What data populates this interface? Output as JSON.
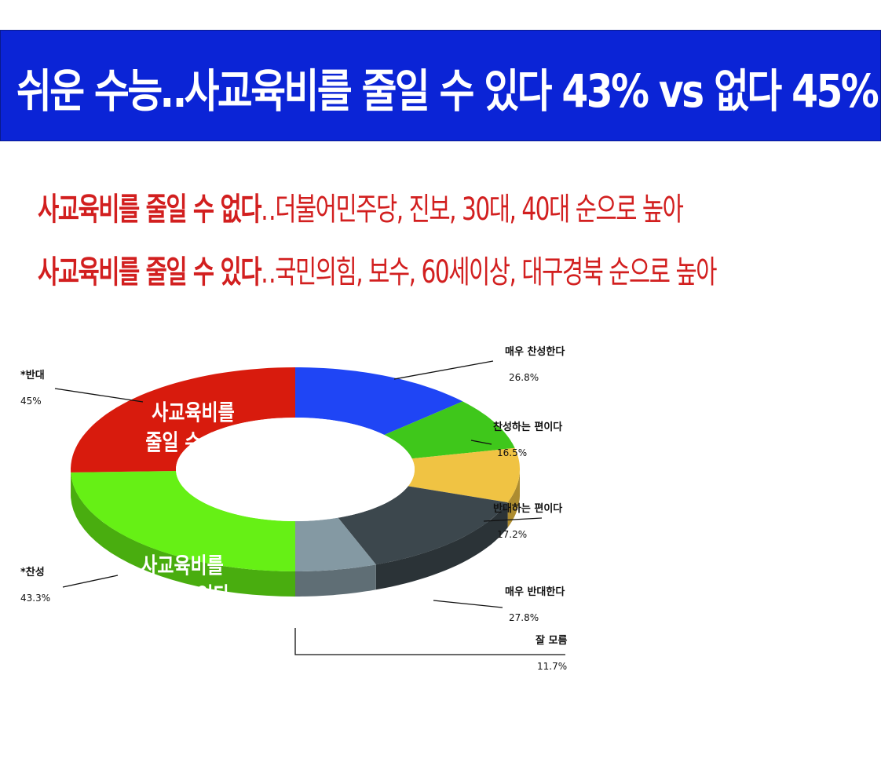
{
  "header": {
    "title": "쉬운 수능‥사교육비를 줄일 수 있다 43% vs 없다 45%"
  },
  "subtitles": [
    {
      "strong": "사교육비를 줄일 수 없다",
      "light": "‥더불어민주당, 진보, 30대, 40대 순으로 높아"
    },
    {
      "strong": "사교육비를 줄일 수 있다",
      "light": "‥국민의힘, 보수, 60세이상, 대구경북 순으로 높아"
    }
  ],
  "chart_data": {
    "type": "pie",
    "style": "3D donut",
    "series": [
      {
        "name": "매우 찬성한다",
        "value": 26.8,
        "label": "26.8%",
        "color": "#1f45f5"
      },
      {
        "name": "찬성하는 편이다",
        "value": 16.5,
        "label": "16.5%",
        "color": "#3fc71b"
      },
      {
        "name": "반대하는 편이다",
        "value": 17.2,
        "label": "17.2%",
        "color": "#f0c343"
      },
      {
        "name": "매우 반대한다",
        "value": 27.8,
        "label": "27.8%",
        "color": "#3c474d"
      },
      {
        "name": "잘 모름",
        "value": 11.7,
        "label": "11.7%",
        "color": "#8499a3"
      },
      {
        "name": "*찬성",
        "value": 43.3,
        "label": "43.3%",
        "color": "#66f015",
        "text": [
          "사교육비를",
          "줄일 수 있다"
        ]
      },
      {
        "name": "*반대",
        "value": 45,
        "label": "45%",
        "color": "#d81b0d",
        "text": [
          "사교육비를",
          "줄일 수 없다"
        ]
      }
    ]
  }
}
